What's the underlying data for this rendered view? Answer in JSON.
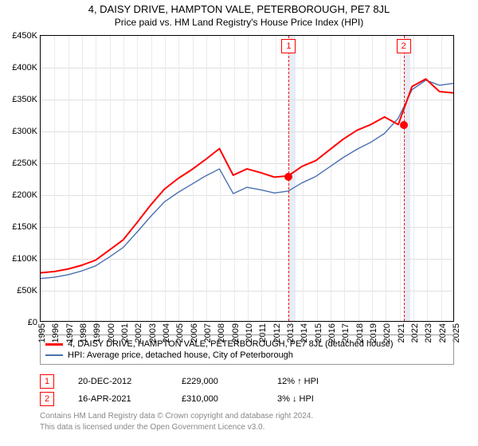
{
  "title": "4, DAISY DRIVE, HAMPTON VALE, PETERBOROUGH, PE7 8JL",
  "subtitle": "Price paid vs. HM Land Registry's House Price Index (HPI)",
  "chart": {
    "type": "line",
    "ylim": [
      0,
      450000
    ],
    "ytick_step": 50000,
    "y_prefix": "£",
    "y_suffix": "K",
    "y_scale_div": 1000,
    "background": "#ffffff",
    "grid_color": "#e0e0e0",
    "vgrid_color": "#eaeaea",
    "axis_color": "#000000",
    "line_width_a": 2,
    "line_width_b": 1.4,
    "x_years": [
      1995,
      1996,
      1997,
      1998,
      1999,
      2000,
      2001,
      2002,
      2003,
      2004,
      2005,
      2006,
      2007,
      2008,
      2009,
      2010,
      2011,
      2012,
      2013,
      2014,
      2015,
      2016,
      2017,
      2018,
      2019,
      2020,
      2021,
      2022,
      2023,
      2024,
      2025
    ],
    "series_a": {
      "label": "4, DAISY DRIVE, HAMPTON VALE, PETERBOROUGH, PE7 8JL (detached house)",
      "color": "#ff0000",
      "years": [
        1995,
        1996,
        1997,
        1998,
        1999,
        2000,
        2001,
        2002,
        2003,
        2004,
        2005,
        2006,
        2007,
        2008,
        2009,
        2010,
        2011,
        2012,
        2013,
        2014,
        2015,
        2016,
        2017,
        2018,
        2019,
        2020,
        2021,
        2022,
        2023,
        2024,
        2025
      ],
      "values": [
        76000,
        78000,
        82000,
        88000,
        96000,
        112000,
        128000,
        155000,
        183000,
        208000,
        225000,
        239000,
        255000,
        272000,
        230000,
        240000,
        234000,
        227000,
        229000,
        244000,
        253000,
        270000,
        287000,
        301000,
        310000,
        322000,
        310000,
        370000,
        382000,
        362000,
        360000
      ]
    },
    "series_b": {
      "label": "HPI: Average price, detached house, City of Peterborough",
      "color": "#4a70b0",
      "years": [
        1995,
        1996,
        1997,
        1998,
        1999,
        2000,
        2001,
        2002,
        2003,
        2004,
        2005,
        2006,
        2007,
        2008,
        2009,
        2010,
        2011,
        2012,
        2013,
        2014,
        2015,
        2016,
        2017,
        2018,
        2019,
        2020,
        2021,
        2022,
        2023,
        2024,
        2025
      ],
      "values": [
        67000,
        69000,
        73000,
        79000,
        87000,
        101000,
        116000,
        140000,
        165000,
        188000,
        203000,
        216000,
        229000,
        240000,
        201000,
        211000,
        207000,
        202000,
        205000,
        218000,
        228000,
        243000,
        258000,
        271000,
        282000,
        296000,
        320000,
        365000,
        380000,
        372000,
        375000
      ]
    },
    "events": [
      {
        "num": "1",
        "year": 2012.97,
        "value": 229000,
        "shade_years": 0.5
      },
      {
        "num": "2",
        "year": 2021.29,
        "value": 310000,
        "shade_years": 0.5
      }
    ]
  },
  "legend": {
    "a_color": "#ff0000",
    "b_color": "#4a70b0"
  },
  "events_table": [
    {
      "num": "1",
      "date": "20-DEC-2012",
      "price": "£229,000",
      "pct": "12% ↑ HPI"
    },
    {
      "num": "2",
      "date": "16-APR-2021",
      "price": "£310,000",
      "pct": "3% ↓ HPI"
    }
  ],
  "footer": {
    "line1": "Contains HM Land Registry data © Crown copyright and database right 2024.",
    "line2": "This data is licensed under the Open Government Licence v3.0."
  }
}
